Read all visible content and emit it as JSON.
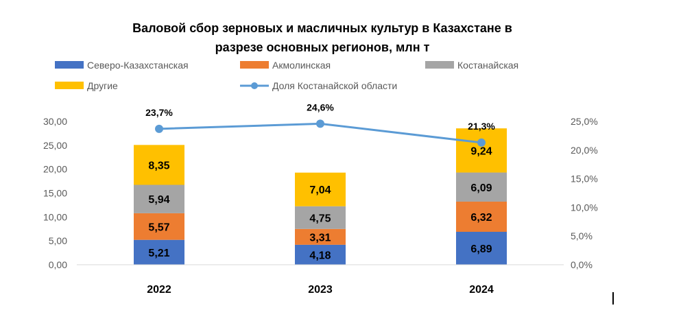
{
  "chart_data": {
    "type": "bar",
    "stacked": true,
    "title_lines": [
      "Валовой сбор зерновых и масличных культур в Казахстане в",
      "разрезе основных регионов, млн т"
    ],
    "categories": [
      "2022",
      "2023",
      "2024"
    ],
    "series": [
      {
        "name": "Северо-Казахстанская",
        "values": [
          5.21,
          4.18,
          6.89
        ],
        "labels": [
          "5,21",
          "4,18",
          "6,89"
        ],
        "color": "#4472C4"
      },
      {
        "name": "Акмолинская",
        "values": [
          5.57,
          3.31,
          6.32
        ],
        "labels": [
          "5,57",
          "3,31",
          "6,32"
        ],
        "color": "#ED7D31"
      },
      {
        "name": "Костанайская",
        "values": [
          5.94,
          4.75,
          6.09
        ],
        "labels": [
          "5,94",
          "4,75",
          "6,09"
        ],
        "color": "#A5A5A5"
      },
      {
        "name": "Другие",
        "values": [
          8.35,
          7.04,
          9.24
        ],
        "labels": [
          "8,35",
          "7,04",
          "9,24"
        ],
        "color": "#FFC000"
      }
    ],
    "line_series": {
      "name": "Доля Костанайской области",
      "axis": "right",
      "values": [
        23.7,
        24.6,
        21.3
      ],
      "labels": [
        "23,7%",
        "24,6%",
        "21,3%"
      ],
      "color": "#5B9BD5"
    },
    "left_axis": {
      "ylim": [
        0,
        30
      ],
      "ticks": [
        0,
        5,
        10,
        15,
        20,
        25,
        30
      ],
      "tick_labels": [
        "0,00",
        "5,00",
        "10,00",
        "15,00",
        "20,00",
        "25,00",
        "30,00"
      ]
    },
    "right_axis": {
      "ylim": [
        0,
        25
      ],
      "ticks": [
        0,
        5,
        10,
        15,
        20,
        25
      ],
      "tick_labels": [
        "0,0%",
        "5,0%",
        "10,0%",
        "15,0%",
        "20,0%",
        "25,0%"
      ]
    },
    "grid": false,
    "legend_position": "top"
  }
}
